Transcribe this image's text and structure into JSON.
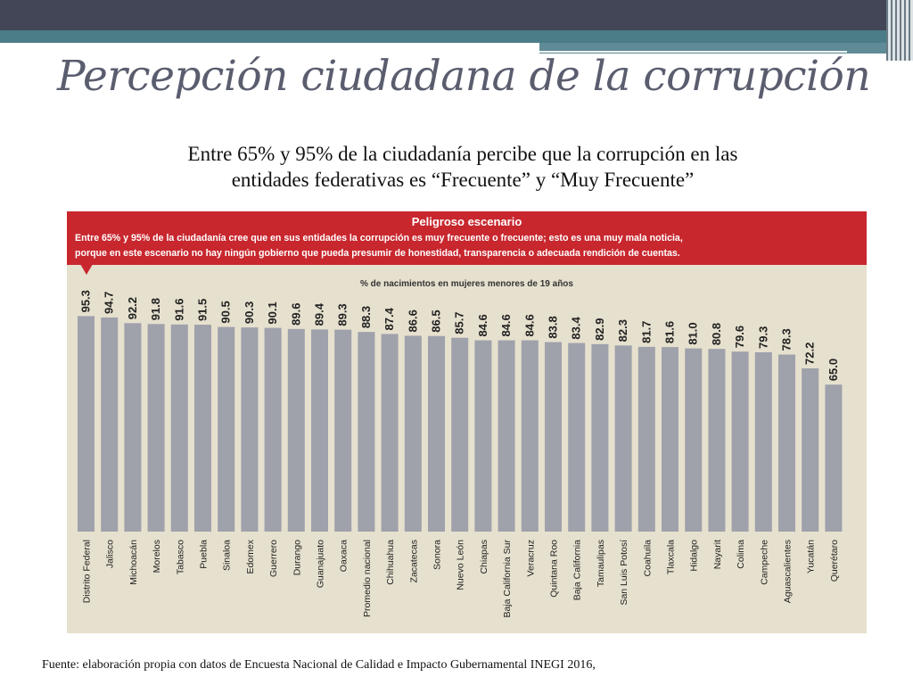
{
  "slide": {
    "title": "Percepción ciudadana de la corrupción",
    "subtitle_line1": "Entre 65% y 95% de la ciudadanía percibe que la corrupción en las",
    "subtitle_line2": "entidades federativas es “Frecuente” y “Muy Frecuente”",
    "footer": "Fuente: elaboración propia con datos de Encuesta Nacional  de Calidad e Impacto Gubernamental INEGI 2016,"
  },
  "chart_header": {
    "title": "Peligroso escenario",
    "text_line1": "Entre 65% y 95% de la ciudadanía cree que en sus entidades la corrupción es muy frecuente o frecuente; esto es una muy mala noticia,",
    "text_line2": "porque en este escenario no hay ningún gobierno que pueda presumir de honestidad, transparencia o adecuada rendición de cuentas."
  },
  "colors": {
    "bar": "#9fa1ab",
    "header_red": "#c8272e",
    "panel_bg": "#e6e0ce",
    "top_bar": "#424657",
    "teal": "#4a7d88"
  },
  "chart_data": {
    "type": "bar",
    "title": "% de nacimientos en mujeres menores de 19 años",
    "categories": [
      "Distrito Federal",
      "Jalisco",
      "Michoacán",
      "Morelos",
      "Tabasco",
      "Puebla",
      "Sinaloa",
      "Edomex",
      "Guerrero",
      "Durango",
      "Guanajuato",
      "Oaxaca",
      "Promedio nacional",
      "Chihuahua",
      "Zacatecas",
      "Sonora",
      "Nuevo León",
      "Chiapas",
      "Baja California Sur",
      "Veracruz",
      "Quintana Roo",
      "Baja California",
      "Tamaulipas",
      "San Luis Potosí",
      "Coahuila",
      "Tlaxcala",
      "Hidalgo",
      "Nayarit",
      "Colima",
      "Campeche",
      "Aguascalientes",
      "Yucatán",
      "Querétaro"
    ],
    "values": [
      95.3,
      94.7,
      92.2,
      91.8,
      91.6,
      91.5,
      90.5,
      90.3,
      90.1,
      89.6,
      89.4,
      89.3,
      88.3,
      87.4,
      86.6,
      86.5,
      85.7,
      84.6,
      84.6,
      84.6,
      83.8,
      83.4,
      82.9,
      82.3,
      81.7,
      81.6,
      81.0,
      80.8,
      79.6,
      79.3,
      78.3,
      72.2,
      65.0
    ],
    "value_labels": [
      "95.3",
      "94.7",
      "92.2",
      "91.8",
      "91.6",
      "91.5",
      "90.5",
      "90.3",
      "90.1",
      "89.6",
      "89.4",
      "89.3",
      "88.3",
      "87.4",
      "86.6",
      "86.5",
      "85.7",
      "84.6",
      "84.6",
      "84.6",
      "83.8",
      "83.4",
      "82.9",
      "82.3",
      "81.7",
      "81.6",
      "81.0",
      "80.8",
      "79.6",
      "79.3",
      "78.3",
      "72.2",
      "65.0"
    ],
    "ylim": [
      0,
      100
    ],
    "grid": false,
    "legend": "none"
  }
}
